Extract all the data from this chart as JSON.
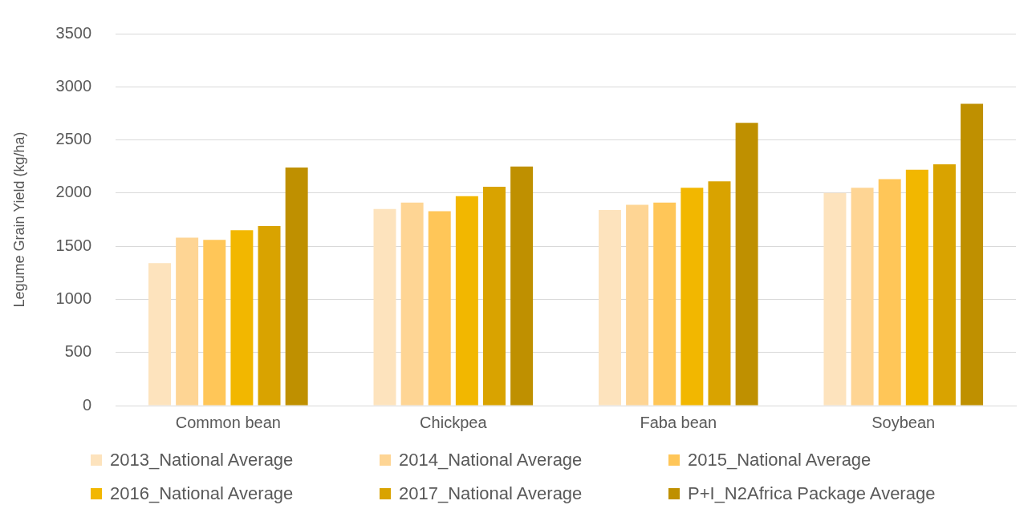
{
  "chart_data": {
    "type": "bar",
    "ylabel": "Legume Grain Yield (kg/ha)",
    "categories": [
      "Common bean",
      "Chickpea",
      "Faba bean",
      "Soybean"
    ],
    "series": [
      {
        "name": "2013_National Average",
        "color": "#fde3bd",
        "values": [
          1340,
          1850,
          1840,
          2000
        ]
      },
      {
        "name": "2014_National Average",
        "color": "#fed594",
        "values": [
          1580,
          1910,
          1890,
          2050
        ]
      },
      {
        "name": "2015_National Average",
        "color": "#ffc658",
        "values": [
          1560,
          1830,
          1910,
          2130
        ]
      },
      {
        "name": "2016_National Average",
        "color": "#f2b700",
        "values": [
          1650,
          1970,
          2050,
          2220
        ]
      },
      {
        "name": "2017_National Average",
        "color": "#d9a300",
        "values": [
          1690,
          2060,
          2110,
          2270
        ]
      },
      {
        "name": "P+I_N2Africa Package Average",
        "color": "#bf9000",
        "values": [
          2240,
          2250,
          2660,
          2840
        ]
      }
    ],
    "ylim": [
      0,
      3500
    ],
    "yticks": [
      0,
      500,
      1000,
      1500,
      2000,
      2500,
      3000,
      3500
    ],
    "grid": "y",
    "legend": "bottom"
  }
}
